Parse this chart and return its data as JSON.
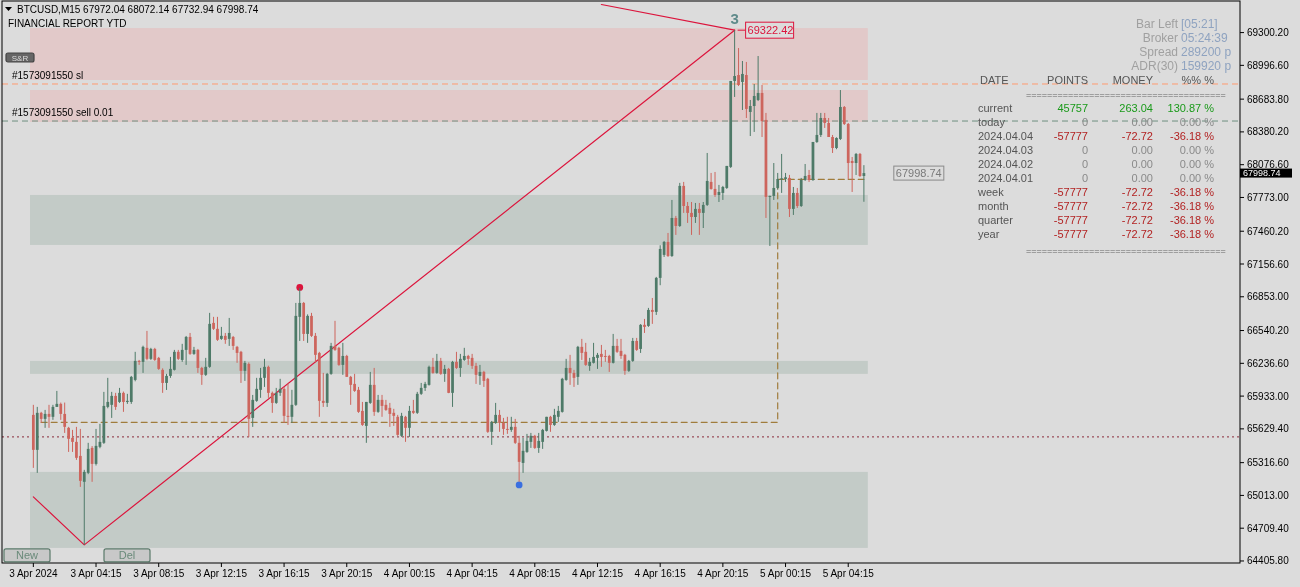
{
  "chart_data": [
    {
      "type": "candlestick",
      "title": "BTCUSD,M15  67972.04 68072.14 67732.94 67998.74",
      "subtitle": "FINANCIAL REPORT YTD",
      "x": [
        "2024-04-03T00:15",
        "2024-04-03T00:30",
        "2024-04-03T00:45",
        "2024-04-03T01:00",
        "2024-04-03T01:15",
        "2024-04-03T01:30",
        "2024-04-03T01:45",
        "2024-04-03T02:00",
        "2024-04-03T02:15",
        "2024-04-03T02:30",
        "2024-04-03T02:45",
        "2024-04-03T03:00",
        "2024-04-03T03:15",
        "2024-04-03T03:30",
        "2024-04-03T03:45",
        "2024-04-03T04:00",
        "2024-04-03T04:15",
        "2024-04-03T04:30",
        "2024-04-03T04:45",
        "2024-04-03T05:00",
        "2024-04-03T05:15",
        "2024-04-03T05:30",
        "2024-04-03T05:45",
        "2024-04-03T06:00",
        "2024-04-03T06:15",
        "2024-04-03T06:30",
        "2024-04-03T06:45",
        "2024-04-03T07:00",
        "2024-04-03T07:15",
        "2024-04-03T07:30",
        "2024-04-03T07:45",
        "2024-04-03T08:00",
        "2024-04-03T08:15",
        "2024-04-03T08:30",
        "2024-04-03T08:45",
        "2024-04-03T09:00",
        "2024-04-03T09:15",
        "2024-04-03T09:30",
        "2024-04-03T09:45",
        "2024-04-03T10:00",
        "2024-04-03T10:15",
        "2024-04-03T10:30",
        "2024-04-03T10:45",
        "2024-04-03T11:00",
        "2024-04-03T11:15",
        "2024-04-03T11:30",
        "2024-04-03T11:45",
        "2024-04-03T12:00",
        "2024-04-03T12:15",
        "2024-04-03T12:30",
        "2024-04-03T12:45",
        "2024-04-03T13:00",
        "2024-04-03T13:15",
        "2024-04-03T13:30",
        "2024-04-03T13:45",
        "2024-04-03T14:00",
        "2024-04-03T14:15",
        "2024-04-03T14:30",
        "2024-04-03T14:45",
        "2024-04-03T15:00",
        "2024-04-03T15:15",
        "2024-04-03T15:30",
        "2024-04-03T15:45",
        "2024-04-03T16:00",
        "2024-04-03T16:15",
        "2024-04-03T16:30",
        "2024-04-03T16:45",
        "2024-04-03T17:00",
        "2024-04-03T17:15",
        "2024-04-03T17:30",
        "2024-04-03T17:45",
        "2024-04-03T18:00",
        "2024-04-03T18:15",
        "2024-04-03T18:30",
        "2024-04-03T18:45",
        "2024-04-03T19:00",
        "2024-04-03T19:15",
        "2024-04-03T19:30",
        "2024-04-03T19:45",
        "2024-04-03T20:00",
        "2024-04-03T20:15",
        "2024-04-03T20:30",
        "2024-04-03T20:45",
        "2024-04-03T21:00",
        "2024-04-03T21:15",
        "2024-04-03T21:30",
        "2024-04-03T21:45",
        "2024-04-03T22:00",
        "2024-04-03T22:15",
        "2024-04-03T22:30",
        "2024-04-03T22:45",
        "2024-04-03T23:00",
        "2024-04-03T23:15",
        "2024-04-03T23:30",
        "2024-04-03T23:45",
        "2024-04-04T00:00",
        "2024-04-04T00:15",
        "2024-04-04T00:30",
        "2024-04-04T00:45",
        "2024-04-04T01:00",
        "2024-04-04T01:15",
        "2024-04-04T01:30",
        "2024-04-04T01:45",
        "2024-04-04T02:00",
        "2024-04-04T02:15",
        "2024-04-04T02:30",
        "2024-04-04T02:45",
        "2024-04-04T03:00",
        "2024-04-04T03:15",
        "2024-04-04T03:30",
        "2024-04-04T03:45",
        "2024-04-04T04:00",
        "2024-04-04T04:15",
        "2024-04-04T04:30",
        "2024-04-04T04:45",
        "2024-04-04T05:00",
        "2024-04-04T05:15",
        "2024-04-04T05:30",
        "2024-04-04T05:45",
        "2024-04-04T06:00",
        "2024-04-04T06:15",
        "2024-04-04T06:30",
        "2024-04-04T06:45",
        "2024-04-04T07:00",
        "2024-04-04T07:15",
        "2024-04-04T07:30",
        "2024-04-04T07:45",
        "2024-04-04T08:00",
        "2024-04-04T08:15",
        "2024-04-04T08:30",
        "2024-04-04T08:45",
        "2024-04-04T09:00",
        "2024-04-04T09:15",
        "2024-04-04T09:30",
        "2024-04-04T09:45",
        "2024-04-04T10:00",
        "2024-04-04T10:15",
        "2024-04-04T10:30",
        "2024-04-04T10:45",
        "2024-04-04T11:00",
        "2024-04-04T11:15",
        "2024-04-04T11:30",
        "2024-04-04T11:45",
        "2024-04-04T12:00",
        "2024-04-04T12:15",
        "2024-04-04T12:30",
        "2024-04-04T12:45",
        "2024-04-04T13:00",
        "2024-04-04T13:15",
        "2024-04-04T13:30",
        "2024-04-04T13:45",
        "2024-04-04T14:00",
        "2024-04-04T14:15",
        "2024-04-04T14:30",
        "2024-04-04T14:45",
        "2024-04-04T15:00",
        "2024-04-04T15:15",
        "2024-04-04T15:30",
        "2024-04-04T15:45",
        "2024-04-04T16:00",
        "2024-04-04T16:15",
        "2024-04-04T16:30",
        "2024-04-04T16:45",
        "2024-04-04T17:00",
        "2024-04-04T17:15",
        "2024-04-04T17:30",
        "2024-04-04T17:45",
        "2024-04-04T18:00",
        "2024-04-04T18:15",
        "2024-04-04T18:30",
        "2024-04-04T18:45",
        "2024-04-04T19:00",
        "2024-04-04T19:15",
        "2024-04-04T19:30",
        "2024-04-04T19:45",
        "2024-04-04T20:00",
        "2024-04-04T20:15",
        "2024-04-04T20:30",
        "2024-04-04T20:45",
        "2024-04-04T21:00",
        "2024-04-04T21:15",
        "2024-04-04T21:30",
        "2024-04-04T21:45",
        "2024-04-04T22:00",
        "2024-04-04T22:15",
        "2024-04-04T22:30",
        "2024-04-04T22:45",
        "2024-04-04T23:00",
        "2024-04-04T23:15",
        "2024-04-04T23:30",
        "2024-04-04T23:45",
        "2024-04-05T00:00",
        "2024-04-05T00:15",
        "2024-04-05T00:30",
        "2024-04-05T00:45",
        "2024-04-05T01:00",
        "2024-04-05T01:15",
        "2024-04-05T01:30",
        "2024-04-05T01:45",
        "2024-04-05T02:00",
        "2024-04-05T02:15",
        "2024-04-05T02:30",
        "2024-04-05T02:45",
        "2024-04-05T03:00",
        "2024-04-05T03:15",
        "2024-04-05T03:30",
        "2024-04-05T03:45",
        "2024-04-05T04:00",
        "2024-04-05T04:15",
        "2024-04-05T04:30",
        "2024-04-05T04:45",
        "2024-04-05T05:00",
        "2024-04-05T05:15"
      ],
      "ohlc": [
        [
          65759,
          65852,
          65268,
          65435
        ],
        [
          65435,
          65833,
          65222,
          65778
        ],
        [
          65778,
          65787,
          65685,
          65722
        ],
        [
          65722,
          65805,
          65639,
          65768
        ],
        [
          65768,
          65852,
          65639,
          65741
        ],
        [
          65741,
          65852,
          65713,
          65833
        ],
        [
          65833,
          65981,
          65833,
          65861
        ],
        [
          65861,
          65873,
          65713,
          65768
        ],
        [
          65768,
          65873,
          65592,
          65648
        ],
        [
          65639,
          65648,
          65416,
          65537
        ],
        [
          65546,
          65620,
          65416,
          65509
        ],
        [
          65509,
          65648,
          65342,
          65361
        ],
        [
          65379,
          65629,
          65092,
          65148
        ],
        [
          65139,
          65250,
          64555,
          65231
        ],
        [
          65222,
          65500,
          65210,
          65444
        ],
        [
          65453,
          65470,
          65139,
          65305
        ],
        [
          65305,
          65629,
          65290,
          65472
        ],
        [
          65463,
          65676,
          65450,
          65509
        ],
        [
          65500,
          65972,
          65490,
          65842
        ],
        [
          65833,
          66102,
          65820,
          65879
        ],
        [
          65852,
          65972,
          65731,
          65935
        ],
        [
          65935,
          65963,
          65805,
          65833
        ],
        [
          65879,
          66009,
          65870,
          65963
        ],
        [
          65963,
          65975,
          65787,
          65879
        ],
        [
          65879,
          65954,
          65861,
          65889
        ],
        [
          65879,
          66120,
          65861,
          66111
        ],
        [
          66083,
          66343,
          66070,
          66259
        ],
        [
          66259,
          66268,
          66222,
          66250
        ],
        [
          66250,
          66400,
          66148,
          66389
        ],
        [
          66380,
          66537,
          66265,
          66278
        ],
        [
          66278,
          66380,
          66268,
          66370
        ],
        [
          66370,
          66380,
          66259,
          66268
        ],
        [
          66287,
          66296,
          66176,
          66185
        ],
        [
          66176,
          66190,
          65963,
          66055
        ],
        [
          66055,
          66139,
          65990,
          66120
        ],
        [
          66120,
          66296,
          66102,
          66185
        ],
        [
          66176,
          66361,
          66170,
          66343
        ],
        [
          66343,
          66361,
          66268,
          66278
        ],
        [
          66268,
          66417,
          66250,
          66361
        ],
        [
          66361,
          66490,
          66222,
          66481
        ],
        [
          66481,
          66518,
          66315,
          66324
        ],
        [
          66324,
          66389,
          66315,
          66361
        ],
        [
          66361,
          66370,
          66148,
          66194
        ],
        [
          66194,
          66204,
          66037,
          66130
        ],
        [
          66130,
          66287,
          66120,
          66204
        ],
        [
          66204,
          66704,
          66195,
          66602
        ],
        [
          66611,
          66667,
          66546,
          66556
        ],
        [
          66556,
          66667,
          66444,
          66454
        ],
        [
          66463,
          66574,
          66454,
          66491
        ],
        [
          66491,
          66518,
          66417,
          66454
        ],
        [
          66463,
          66657,
          66398,
          66518
        ],
        [
          66481,
          66490,
          66361,
          66398
        ],
        [
          66389,
          66398,
          66241,
          66333
        ],
        [
          66343,
          66352,
          66055,
          66167
        ],
        [
          66167,
          66259,
          66074,
          66241
        ],
        [
          66231,
          66245,
          65555,
          65722
        ],
        [
          65731,
          65944,
          65648,
          65898
        ],
        [
          65889,
          66102,
          65880,
          66000
        ],
        [
          65991,
          66194,
          65917,
          66102
        ],
        [
          66102,
          66278,
          66018,
          66204
        ],
        [
          66204,
          66215,
          65917,
          65963
        ],
        [
          65963,
          65975,
          65778,
          65870
        ],
        [
          65870,
          66009,
          65861,
          65963
        ],
        [
          65963,
          66093,
          65935,
          66000
        ],
        [
          66000,
          66018,
          65685,
          65750
        ],
        [
          65750,
          66055,
          65666,
          65741
        ],
        [
          65741,
          65991,
          65685,
          65852
        ],
        [
          65852,
          66796,
          65842,
          66676
        ],
        [
          66667,
          66935,
          66444,
          66796
        ],
        [
          66796,
          66805,
          66444,
          66509
        ],
        [
          66509,
          66690,
          66426,
          66676
        ],
        [
          66676,
          66704,
          66481,
          66491
        ],
        [
          66491,
          66518,
          66241,
          66315
        ],
        [
          66333,
          66343,
          65741,
          65889
        ],
        [
          65889,
          66148,
          65833,
          65870
        ],
        [
          65870,
          66148,
          65833,
          66139
        ],
        [
          66139,
          66426,
          66130,
          66398
        ],
        [
          66398,
          66630,
          66352,
          66361
        ],
        [
          66380,
          66389,
          66213,
          66222
        ],
        [
          66222,
          66426,
          66130,
          66305
        ],
        [
          66305,
          66315,
          66111,
          66111
        ],
        [
          66111,
          66120,
          65852,
          66037
        ],
        [
          66046,
          66139,
          65972,
          65981
        ],
        [
          65991,
          66018,
          65778,
          65787
        ],
        [
          65796,
          65879,
          65657,
          65666
        ],
        [
          65657,
          65879,
          65500,
          65879
        ],
        [
          65870,
          66157,
          65861,
          66037
        ],
        [
          66037,
          66194,
          65750,
          65787
        ],
        [
          65787,
          65944,
          65778,
          65898
        ],
        [
          65898,
          65944,
          65741,
          65842
        ],
        [
          65852,
          65898,
          65796,
          65805
        ],
        [
          65824,
          65870,
          65648,
          65768
        ],
        [
          65778,
          65815,
          65657,
          65750
        ],
        [
          65741,
          65759,
          65565,
          65574
        ],
        [
          65565,
          65778,
          65555,
          65750
        ],
        [
          65741,
          65750,
          65509,
          65639
        ],
        [
          65639,
          65842,
          65555,
          65796
        ],
        [
          65796,
          65898,
          65768,
          65778
        ],
        [
          65778,
          65972,
          65768,
          65954
        ],
        [
          65954,
          66055,
          65944,
          66009
        ],
        [
          66009,
          66065,
          65981,
          66046
        ],
        [
          66037,
          66215,
          66030,
          66204
        ],
        [
          66204,
          66287,
          66140,
          66148
        ],
        [
          66148,
          66324,
          66140,
          66259
        ],
        [
          66259,
          66287,
          66130,
          66139
        ],
        [
          66139,
          66222,
          66065,
          66185
        ],
        [
          66185,
          66194,
          65960,
          65963
        ],
        [
          65963,
          66259,
          65833,
          66250
        ],
        [
          66250,
          66343,
          66185,
          66194
        ],
        [
          66194,
          66324,
          66111,
          66278
        ],
        [
          66268,
          66380,
          66259,
          66305
        ],
        [
          66305,
          66315,
          66222,
          66278
        ],
        [
          66287,
          66324,
          66185,
          66213
        ],
        [
          66213,
          66241,
          66046,
          66130
        ],
        [
          66120,
          66222,
          66037,
          66157
        ],
        [
          66157,
          66167,
          66018,
          66074
        ],
        [
          66093,
          66102,
          65592,
          65602
        ],
        [
          65602,
          65703,
          65481,
          65694
        ],
        [
          65685,
          65870,
          65676,
          65759
        ],
        [
          65759,
          65805,
          65602,
          65685
        ],
        [
          65685,
          65731,
          65574,
          65629
        ],
        [
          65629,
          65741,
          65583,
          65620
        ],
        [
          65620,
          65741,
          65602,
          65648
        ],
        [
          65648,
          65722,
          65490,
          65500
        ],
        [
          65500,
          65565,
          65140,
          65324
        ],
        [
          65314,
          65546,
          65222,
          65426
        ],
        [
          65416,
          65583,
          65407,
          65518
        ],
        [
          65509,
          65592,
          65453,
          65565
        ],
        [
          65565,
          65574,
          65444,
          65453
        ],
        [
          65453,
          65592,
          65407,
          65518
        ],
        [
          65509,
          65629,
          65444,
          65620
        ],
        [
          65611,
          65741,
          65605,
          65741
        ],
        [
          65741,
          65750,
          65602,
          65666
        ],
        [
          65666,
          65815,
          65657,
          65759
        ],
        [
          65741,
          65842,
          65694,
          65796
        ],
        [
          65787,
          66102,
          65780,
          66093
        ],
        [
          66083,
          66278,
          66075,
          66194
        ],
        [
          66194,
          66315,
          66037,
          66148
        ],
        [
          66148,
          66176,
          66018,
          66102
        ],
        [
          66111,
          66398,
          66037,
          66389
        ],
        [
          66389,
          66463,
          66268,
          66333
        ],
        [
          66343,
          66426,
          66213,
          66222
        ],
        [
          66213,
          66287,
          66167,
          66250
        ],
        [
          66241,
          66426,
          66235,
          66296
        ],
        [
          66287,
          66333,
          66185,
          66315
        ],
        [
          66324,
          66407,
          66204,
          66296
        ],
        [
          66305,
          66361,
          66250,
          66300
        ],
        [
          66305,
          66315,
          66157,
          66241
        ],
        [
          66241,
          66509,
          66235,
          66398
        ],
        [
          66398,
          66463,
          66333,
          66343
        ],
        [
          66352,
          66463,
          66278,
          66305
        ],
        [
          66315,
          66324,
          66130,
          66167
        ],
        [
          66167,
          66268,
          66157,
          66259
        ],
        [
          66259,
          66472,
          66250,
          66444
        ],
        [
          66444,
          66472,
          66352,
          66361
        ],
        [
          66370,
          66600,
          66333,
          66593
        ],
        [
          66593,
          66648,
          66518,
          66574
        ],
        [
          66583,
          66750,
          66574,
          66731
        ],
        [
          66731,
          66842,
          66602,
          66713
        ],
        [
          66713,
          67037,
          66685,
          67028
        ],
        [
          67028,
          67330,
          66960,
          67296
        ],
        [
          67241,
          67370,
          67222,
          67361
        ],
        [
          67361,
          67444,
          67222,
          67231
        ],
        [
          67231,
          67750,
          67222,
          67583
        ],
        [
          67583,
          67602,
          67426,
          67509
        ],
        [
          67509,
          67908,
          67500,
          67880
        ],
        [
          67880,
          67917,
          67630,
          67694
        ],
        [
          67694,
          67731,
          67537,
          67630
        ],
        [
          67630,
          67731,
          67426,
          67592
        ],
        [
          67592,
          67722,
          67537,
          67667
        ],
        [
          67667,
          67722,
          67426,
          67630
        ],
        [
          67630,
          67731,
          67490,
          67704
        ],
        [
          67704,
          68185,
          67694,
          67926
        ],
        [
          67917,
          68000,
          67845,
          67852
        ],
        [
          67852,
          68009,
          67778,
          67796
        ],
        [
          67796,
          67889,
          67731,
          67824
        ],
        [
          67815,
          67880,
          67750,
          67870
        ],
        [
          67861,
          68065,
          67852,
          68065
        ],
        [
          68056,
          68852,
          68046,
          68852
        ],
        [
          68852,
          69322.42,
          68704,
          68898
        ],
        [
          68907,
          69157,
          68805,
          68815
        ],
        [
          68843,
          69037,
          68583,
          68917
        ],
        [
          68907,
          69028,
          68509,
          68593
        ],
        [
          68565,
          68676,
          68342,
          68620
        ],
        [
          68620,
          68824,
          68380,
          68713
        ],
        [
          68676,
          69083,
          68666,
          68741
        ],
        [
          68741,
          68815,
          68333,
          68481
        ],
        [
          68491,
          68556,
          67583,
          67778
        ],
        [
          67778,
          67790,
          67324,
          67787
        ],
        [
          67787,
          68092,
          67750,
          67861
        ],
        [
          67861,
          68000,
          67845,
          67944
        ],
        [
          67944,
          68176,
          67815,
          67950
        ],
        [
          67944,
          68000,
          67917,
          67960
        ],
        [
          67954,
          67982,
          67592,
          67667
        ],
        [
          67667,
          67870,
          67611,
          67815
        ],
        [
          67815,
          67861,
          67676,
          67694
        ],
        [
          67694,
          67954,
          67685,
          67935
        ],
        [
          67935,
          68083,
          67926,
          67972
        ],
        [
          67981,
          68028,
          67917,
          67935
        ],
        [
          67935,
          68287,
          67926,
          68287
        ],
        [
          68287,
          68556,
          68278,
          68352
        ],
        [
          68352,
          68556,
          68333,
          68509
        ],
        [
          68509,
          68556,
          68417,
          68463
        ],
        [
          68463,
          68509,
          68333,
          68333
        ],
        [
          68333,
          68352,
          68185,
          68231
        ],
        [
          68231,
          68330,
          68220,
          68324
        ],
        [
          68315,
          68768,
          68305,
          68611
        ],
        [
          68611,
          68620,
          68444,
          68454
        ],
        [
          68454,
          68463,
          67944,
          68092
        ],
        [
          68111,
          68148,
          67824,
          68092
        ],
        [
          68092,
          68185,
          67981,
          68176
        ],
        [
          68176,
          68185,
          67963,
          67972
        ],
        [
          67972.04,
          68072.14,
          67732.94,
          67998.74
        ]
      ],
      "series": [
        {
          "type": "line",
          "x": [
            "2024-04-03T00:15",
            "2024-04-03T03:30",
            "2024-04-04T21:00"
          ],
          "values": [
            65000,
            64555,
            69322.42
          ],
          "color": "#dc143c"
        },
        {
          "type": "line",
          "x": [
            "2024-04-04T12:30",
            "2024-04-04T21:00"
          ],
          "values": [
            69560,
            69322.42
          ],
          "color": "#dc143c"
        },
        {
          "type": "line",
          "x": [
            "2024-04-03T00:45",
            "2024-04-04T23:45",
            "2024-04-04T23:45",
            "2024-04-05T05:15"
          ],
          "values": [
            65690,
            65690,
            67940,
            67940
          ],
          "color": "#a07c3c",
          "line_style": "dashed"
        },
        {
          "type": "scatter",
          "x": [
            "2024-04-03T17:15",
            "2024-04-04T07:15"
          ],
          "values": [
            66940,
            65110
          ],
          "colors": [
            "#dc143c",
            "#3a6fe0"
          ],
          "marker": "circle"
        }
      ],
      "bands": [
        {
          "axis": "y",
          "from": 68861,
          "to": 69342,
          "color": "#e2c9c9"
        },
        {
          "axis": "y",
          "from": 68472,
          "to": 68768,
          "color": "#e2c9c9"
        },
        {
          "axis": "y",
          "from": 67333,
          "to": 67796,
          "color": "#c3cbc7"
        },
        {
          "axis": "y",
          "from": 66139,
          "to": 66259,
          "color": "#c3cbc7"
        },
        {
          "axis": "y",
          "from": 64527,
          "to": 65231,
          "color": "#c3cbc7"
        }
      ],
      "ref_lines": [
        {
          "axis": "y",
          "value": 68824,
          "label": "#1573091550 sl",
          "color": "#ff9a70",
          "line_style": "dashed"
        },
        {
          "axis": "y",
          "value": 68481,
          "label": "#1573091550 sell 0.01",
          "color": "#6f8f80",
          "line_style": "dashed"
        },
        {
          "axis": "y",
          "value": 65555,
          "color": "#8a2a3a",
          "line_style": "dotted"
        }
      ],
      "annotations": [
        "S&R",
        "New",
        "Del",
        "3",
        "67998.74",
        "67998.74",
        {
          "text": "69322.42",
          "x": "2024-04-04T21:00",
          "y": 69322.42
        }
      ],
      "xlim": [
        "2024-04-02T22:15",
        "2024-04-06T05:15"
      ],
      "xticks": [
        {
          "value": "2024-04-03T00:15",
          "label": "3 Apr 2024"
        },
        {
          "value": "2024-04-03T04:15",
          "label": "3 Apr 04:15"
        },
        {
          "value": "2024-04-03T08:15",
          "label": "3 Apr 08:15"
        },
        {
          "value": "2024-04-03T12:15",
          "label": "3 Apr 12:15"
        },
        {
          "value": "2024-04-03T16:15",
          "label": "3 Apr 16:15"
        },
        {
          "value": "2024-04-03T20:15",
          "label": "3 Apr 20:15"
        },
        {
          "value": "2024-04-04T00:15",
          "label": "4 Apr 00:15"
        },
        {
          "value": "2024-04-04T04:15",
          "label": "4 Apr 04:15"
        },
        {
          "value": "2024-04-04T08:15",
          "label": "4 Apr 08:15"
        },
        {
          "value": "2024-04-04T12:15",
          "label": "4 Apr 12:15"
        },
        {
          "value": "2024-04-04T16:15",
          "label": "4 Apr 16:15"
        },
        {
          "value": "2024-04-04T20:15",
          "label": "4 Apr 20:15"
        },
        {
          "value": "2024-04-05T00:15",
          "label": "5 Apr 00:15"
        },
        {
          "value": "2024-04-05T04:15",
          "label": "5 Apr 04:15"
        }
      ],
      "ylim": [
        64387,
        69602
      ],
      "yticks": [
        {
          "value": 69300.2,
          "label": "69300.20"
        },
        {
          "value": 68996.6,
          "label": "68996.60"
        },
        {
          "value": 68683.8,
          "label": "68683.80"
        },
        {
          "value": 68380.2,
          "label": "68380.20"
        },
        {
          "value": 68076.6,
          "label": "68076.60"
        },
        {
          "value": 67773,
          "label": "67773.00"
        },
        {
          "value": 67460.2,
          "label": "67460.20"
        },
        {
          "value": 67156.6,
          "label": "67156.60"
        },
        {
          "value": 66853,
          "label": "66853.00"
        },
        {
          "value": 66540.2,
          "label": "66540.20"
        },
        {
          "value": 66236.6,
          "label": "66236.60"
        },
        {
          "value": 65933,
          "label": "65933.00"
        },
        {
          "value": 65629.4,
          "label": "65629.40"
        },
        {
          "value": 65316.6,
          "label": "65316.60"
        },
        {
          "value": 65013,
          "label": "65013.00"
        },
        {
          "value": 64709.4,
          "label": "64709.40"
        },
        {
          "value": 64405.8,
          "label": "64405.80"
        }
      ]
    },
    {
      "type": "other",
      "ylabel": "DATE",
      "categories": [
        "current",
        "today",
        "2024.04.04",
        "2024.04.03",
        "2024.04.02",
        "2024.04.01",
        "week",
        "month",
        "quarter",
        "year"
      ],
      "series": [
        {
          "name": "POINTS",
          "values": [
            45757,
            0,
            -57777,
            0,
            0,
            0,
            -57777,
            -57777,
            -57777,
            -57777
          ],
          "value_labels": [
            "45757",
            "0",
            "-57777",
            "0",
            "0",
            "0",
            "-57777",
            "-57777",
            "-57777",
            "-57777"
          ]
        },
        {
          "name": "MONEY",
          "values": [
            263.04,
            0,
            -72.72,
            0,
            0,
            0,
            -72.72,
            -72.72,
            -72.72,
            -72.72
          ],
          "value_labels": [
            "263.04",
            "0.00",
            "-72.72",
            "0.00",
            "0.00",
            "0.00",
            "-72.72",
            "-72.72",
            "-72.72",
            "-72.72"
          ]
        },
        {
          "name": "%%  %",
          "values": [
            130.87,
            0,
            -36.18,
            0,
            0,
            0,
            -36.18,
            -36.18,
            -36.18,
            -36.18
          ],
          "value_labels": [
            "130.87  %",
            "0.00  %",
            "-36.18  %",
            "0.00  %",
            "0.00  %",
            "0.00  %",
            "-36.18  %",
            "-36.18  %",
            "-36.18  %",
            "-36.18  %"
          ]
        }
      ],
      "annotations": [
        "Bar Left",
        "[05:21]",
        "Broker",
        "05:24:39",
        "Spread",
        "289200 p",
        "ADR(30)",
        "159920 p",
        "======================================",
        "======================================"
      ]
    }
  ]
}
